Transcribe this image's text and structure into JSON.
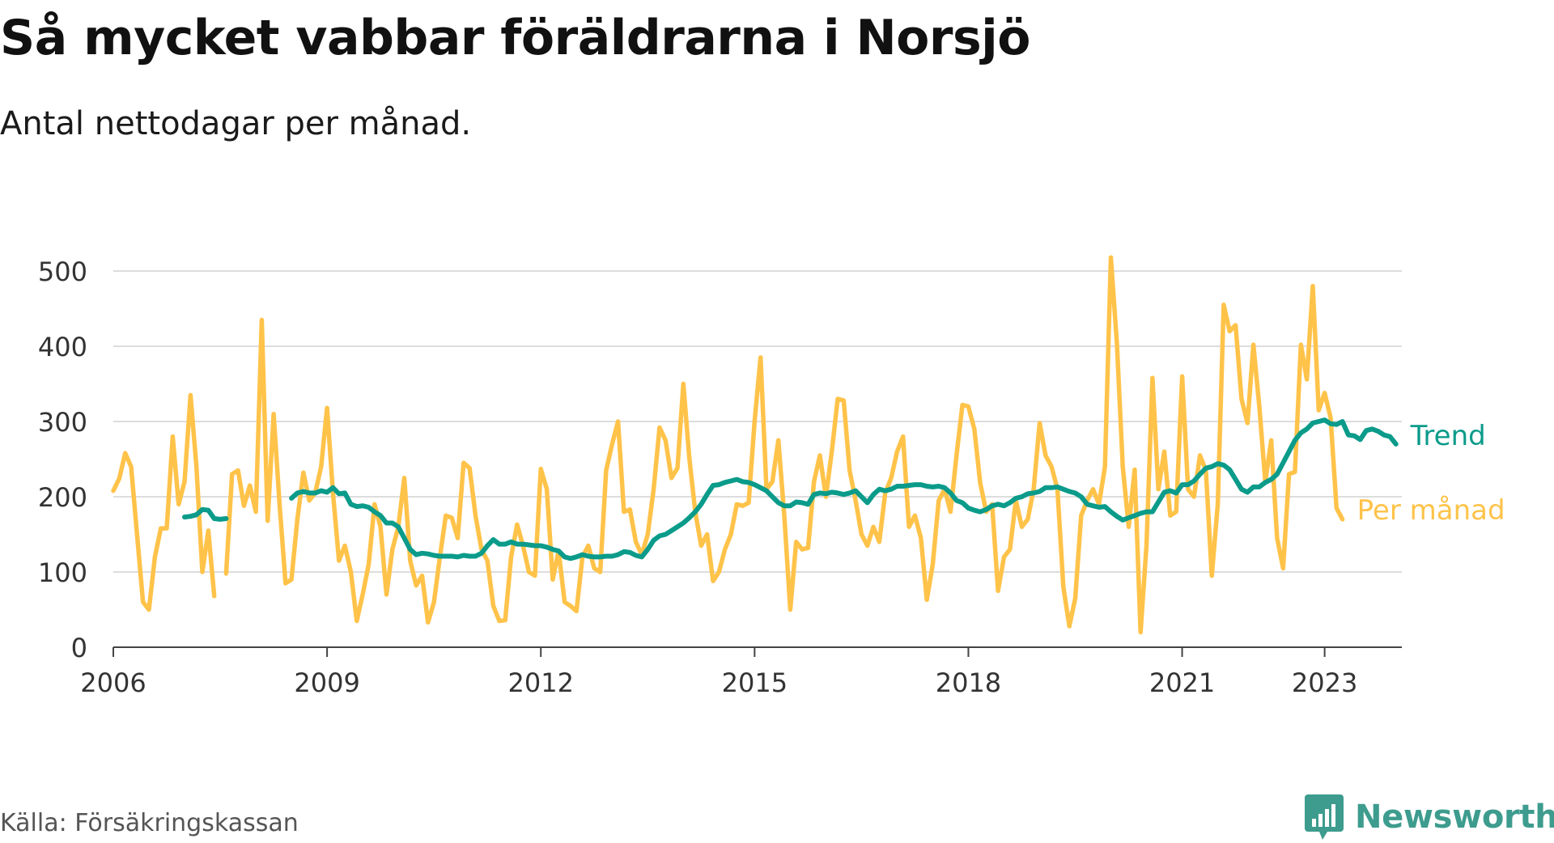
{
  "title": "Så mycket vabbar föräldrarna i Norsjö",
  "subtitle": "Antal nettodagar per månad.",
  "source": "Källa: Försäkringskassan",
  "brand": {
    "name": "Newsworthy",
    "icon": "newsworthy-logo-icon",
    "color": "#3d9c8e"
  },
  "chart_data": {
    "type": "line",
    "y_ticks": [
      0,
      100,
      200,
      300,
      400,
      500
    ],
    "ylim": [
      0,
      500
    ],
    "x_ticks": [
      "2006",
      "2009",
      "2012",
      "2015",
      "2018",
      "2021",
      "2023"
    ],
    "xlim": [
      "2006-01",
      "2024-02"
    ],
    "grid": true,
    "legend": "direct labels at right end of lines",
    "series": [
      {
        "name": "Per månad",
        "color": "#ffc34a",
        "segments": [
          {
            "start": "2006-01",
            "values": [
              208,
              224,
              258,
              240,
              150,
              60,
              50,
              120,
              158,
              158,
              280,
              190,
              220,
              335,
              240,
              100,
              155,
              68
            ]
          },
          {
            "start": "2007-08",
            "values": [
              98,
              230,
              235,
              188,
              215,
              180,
              435,
              168,
              310,
              190,
              85,
              90,
              170,
              232,
              195,
              205,
              240,
              318,
              205,
              115,
              135,
              100,
              35,
              70,
              110,
              190,
              160,
              70,
              130,
              160,
              225,
              115,
              82,
              95,
              33,
              60,
              120,
              175,
              172,
              145,
              245,
              238,
              175,
              130,
              115,
              55,
              35,
              36,
              120,
              163,
              135,
              100,
              95,
              237,
              210,
              90,
              128,
              60,
              55,
              48,
              120,
              135,
              105,
              100,
              235,
              270,
              300,
              180,
              183,
              140,
              123,
              150,
              210,
              292,
              275,
              225,
              238,
              350,
              252,
              180,
              135,
              150,
              88,
              100,
              130,
              150,
              190,
              188,
              192,
              300,
              385,
              210,
              220,
              275,
              175,
              50,
              140,
              130,
              132,
              220,
              255,
              200,
              260,
              330,
              328,
              235,
              195,
              150,
              135,
              160,
              140,
              205,
              225,
              260,
              280,
              160,
              175,
              145,
              63,
              110,
              195,
              210,
              180,
              255,
              322,
              320,
              290,
              218,
              180,
              190,
              75,
              120,
              130,
              195,
              160,
              170,
              210,
              298,
              255,
              240,
              210,
              80,
              28,
              65,
              175,
              195,
              210,
              190,
              240,
              518,
              405,
              240,
              160,
              236,
              20,
              135,
              358,
              210,
              260,
              175,
              180,
              360,
              210,
              200,
              255,
              235,
              95,
              190,
              455,
              420,
              428,
              330,
              298,
              402,
              320,
              220,
              275,
              145,
              105,
              230,
              233,
              402,
              356,
              480,
              315,
              338,
              305,
              185,
              170
            ]
          }
        ]
      },
      {
        "name": "Trend",
        "color": "#0b9b8a",
        "segments": [
          {
            "start": "2007-01",
            "values": [
              173,
              174,
              176,
              183,
              182,
              171,
              170,
              171
            ]
          },
          {
            "start": "2008-07",
            "values": [
              198,
              205,
              207,
              205,
              205,
              208,
              206,
              212,
              204,
              205,
              190,
              187,
              188,
              186,
              180,
              175,
              165,
              165,
              160,
              145,
              130,
              123,
              125,
              124,
              122,
              121,
              121,
              121,
              120,
              122,
              121,
              121,
              125,
              135,
              143,
              137,
              137,
              140,
              137,
              137,
              136,
              135,
              135,
              133,
              130,
              128,
              120,
              118,
              120,
              123,
              121,
              120,
              120,
              121,
              121,
              123,
              127,
              126,
              122,
              120,
              130,
              142,
              148,
              150,
              155,
              160,
              165,
              172,
              180,
              190,
              203,
              215,
              216,
              219,
              221,
              223,
              220,
              219,
              216,
              212,
              208,
              200,
              192,
              188,
              188,
              193,
              192,
              190,
              203,
              205,
              204,
              206,
              205,
              203,
              205,
              208,
              200,
              192,
              203,
              210,
              208,
              210,
              214,
              214,
              215,
              216,
              216,
              214,
              213,
              214,
              212,
              205,
              195,
              192,
              185,
              182,
              180,
              183,
              188,
              190,
              188,
              192,
              198,
              200,
              204,
              205,
              207,
              212,
              212,
              213,
              210,
              207,
              205,
              200,
              190,
              188,
              186,
              187,
              180,
              174,
              169,
              172,
              175,
              178,
              180,
              180,
              193,
              206,
              208,
              205,
              216,
              216,
              221,
              230,
              238,
              240,
              244,
              242,
              236,
              223,
              210,
              206,
              213,
              213,
              219,
              223,
              230,
              245,
              260,
              275,
              285,
              290,
              298,
              300,
              302,
              297,
              296,
              300,
              282,
              281,
              276,
              288,
              290,
              287,
              282,
              280,
              270
            ]
          }
        ]
      }
    ]
  }
}
